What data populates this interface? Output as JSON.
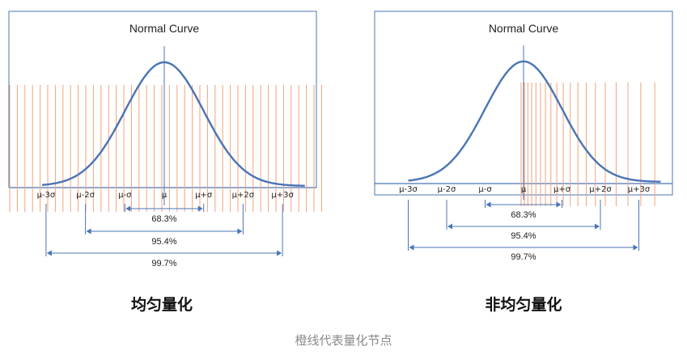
{
  "colors": {
    "curve": "#4a74b5",
    "frame": "#4a74b5",
    "node_line": "#f4a27a",
    "text": "#222222",
    "footer_text": "#8a8a8a"
  },
  "panels": [
    {
      "id": "uniform",
      "title": "Normal Curve",
      "axis_labels": [
        "μ-3σ",
        "μ-2σ",
        "μ-σ",
        "μ",
        "μ+σ",
        "μ+2σ",
        "μ+3σ"
      ],
      "intervals": [
        {
          "sigma": 1,
          "label": "68.3%"
        },
        {
          "sigma": 2,
          "label": "95.4%"
        },
        {
          "sigma": 3,
          "label": "99.7%"
        }
      ],
      "quantization": "uniform",
      "caption": "均匀量化"
    },
    {
      "id": "nonuniform",
      "title": "Normal Curve",
      "axis_labels": [
        "μ-3σ",
        "μ-2σ",
        "μ-σ",
        "μ",
        "μ+σ",
        "μ+2σ",
        "μ+3σ"
      ],
      "intervals": [
        {
          "sigma": 1,
          "label": "68.3%"
        },
        {
          "sigma": 2,
          "label": "95.4%"
        },
        {
          "sigma": 3,
          "label": "99.7%"
        }
      ],
      "quantization": "nonuniform",
      "caption": "非均匀量化"
    }
  ],
  "footer_caption": "橙线代表量化节点"
}
